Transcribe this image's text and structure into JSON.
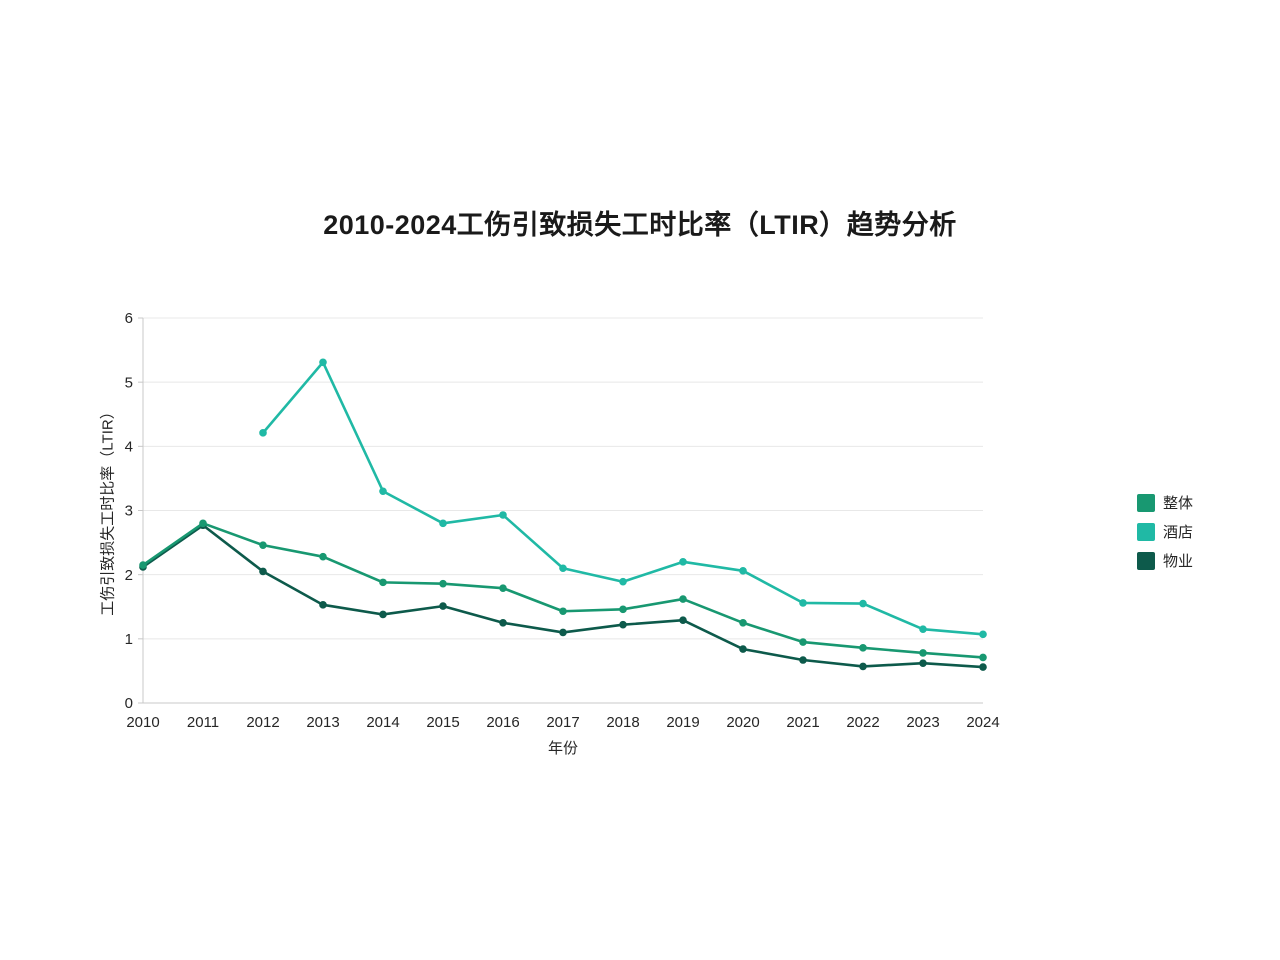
{
  "chart_data": {
    "type": "line",
    "title": "2010-2024工伤引致损失工时比率（LTIR）趋势分析",
    "xlabel": "年份",
    "ylabel": "工伤引致损失工时比率（LTIR）",
    "ylim": [
      0,
      6
    ],
    "yticks": [
      0,
      1,
      2,
      3,
      4,
      5,
      6
    ],
    "grid": "horizontal",
    "legend_position": "right",
    "background": "#ffffff",
    "gridline_color": "#e8e8e8",
    "axis_color": "#c8c8c8",
    "tick_label_color": "#262626",
    "categories": [
      "2010",
      "2011",
      "2012",
      "2013",
      "2014",
      "2015",
      "2016",
      "2017",
      "2018",
      "2019",
      "2020",
      "2021",
      "2022",
      "2023",
      "2024"
    ],
    "series": [
      {
        "key": "overall",
        "name": "整体",
        "color": "#189871",
        "values": [
          2.15,
          2.8,
          2.46,
          2.28,
          1.88,
          1.86,
          1.79,
          1.43,
          1.46,
          1.62,
          1.25,
          0.95,
          0.86,
          0.78,
          0.71
        ]
      },
      {
        "key": "hotel",
        "name": "酒店",
        "color": "#20b9a5",
        "values": [
          null,
          null,
          4.21,
          5.31,
          3.3,
          2.8,
          2.93,
          2.1,
          1.89,
          2.2,
          2.06,
          1.56,
          1.55,
          1.15,
          1.07
        ]
      },
      {
        "key": "property",
        "name": "物业",
        "color": "#0d5a4b",
        "values": [
          2.12,
          2.77,
          2.05,
          1.53,
          1.38,
          1.51,
          1.25,
          1.1,
          1.22,
          1.29,
          0.84,
          0.67,
          0.57,
          0.62,
          0.56
        ]
      }
    ],
    "draw_order": [
      "hotel",
      "property",
      "overall"
    ]
  }
}
